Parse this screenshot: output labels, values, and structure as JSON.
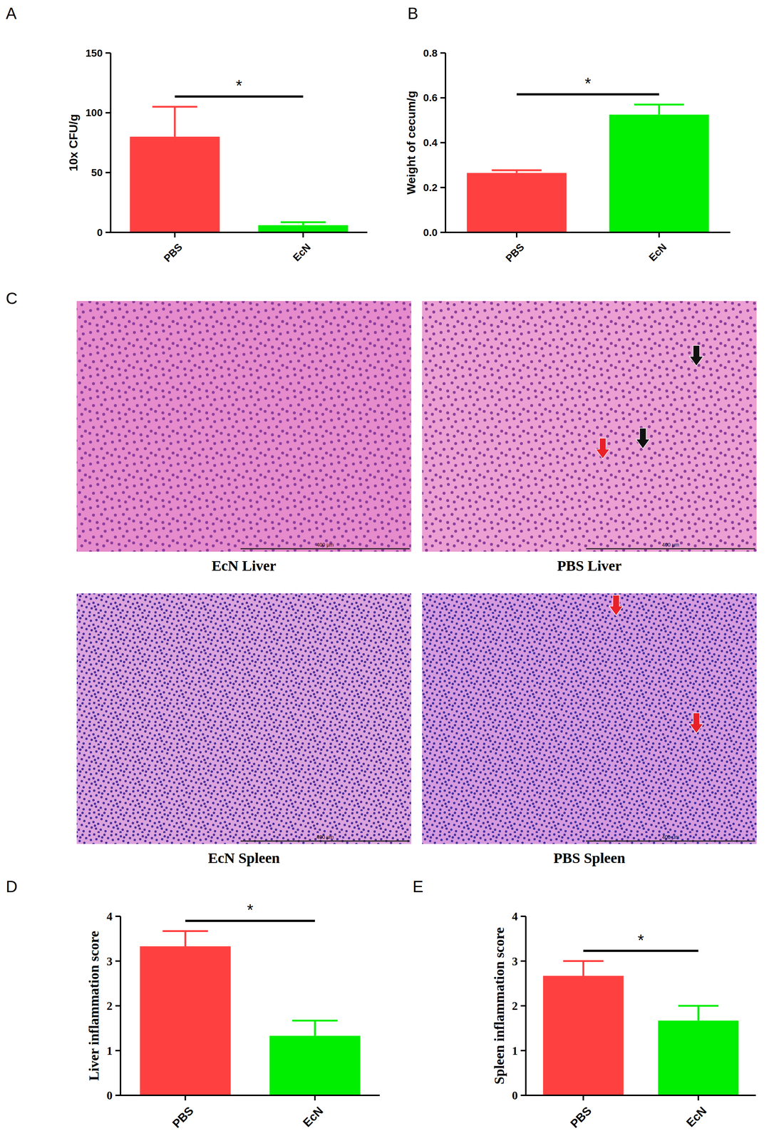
{
  "chart_data": [
    {
      "panel": "A",
      "type": "bar",
      "categories": [
        "PBS",
        "EcN"
      ],
      "values": [
        80,
        6
      ],
      "errors": [
        25,
        2.5
      ],
      "colors": [
        "#ff4040",
        "#00ee00"
      ],
      "y_label": "10x CFU/g",
      "ylim": [
        0,
        150
      ],
      "yticks": [
        0,
        50,
        100,
        150
      ],
      "annotation": "*"
    },
    {
      "panel": "B",
      "type": "bar",
      "categories": [
        "PBS",
        "EcN"
      ],
      "values": [
        0.265,
        0.525
      ],
      "errors": [
        0.012,
        0.045
      ],
      "colors": [
        "#ff4040",
        "#00ee00"
      ],
      "y_label": "Weight of cecum/g",
      "ylim": [
        0,
        0.8
      ],
      "yticks": [
        {
          "value": 0,
          "label": "0.0"
        },
        0.2,
        0.4,
        0.6,
        0.8
      ],
      "annotation": "*"
    },
    {
      "panel": "D",
      "type": "bar",
      "categories": [
        "PBS",
        "EcN"
      ],
      "values": [
        3.33,
        1.33
      ],
      "errors": [
        0.34,
        0.34
      ],
      "colors": [
        "#ff4040",
        "#00ee00"
      ],
      "y_label": "Liver inflammation score",
      "ylim": [
        0,
        4
      ],
      "yticks": [
        0,
        1,
        2,
        3,
        4
      ],
      "annotation": "*"
    },
    {
      "panel": "E",
      "type": "bar",
      "categories": [
        "PBS",
        "EcN"
      ],
      "values": [
        2.67,
        1.67
      ],
      "errors": [
        0.33,
        0.33
      ],
      "colors": [
        "#ff4040",
        "#00ee00"
      ],
      "y_label": "Spleen inflammation score",
      "ylim": [
        0,
        4
      ],
      "yticks": [
        0,
        1,
        2,
        3,
        4
      ],
      "annotation": "*"
    }
  ],
  "images": {
    "panel": "C",
    "items": [
      {
        "label": "EcN Liver",
        "scale_bar": "400 μm"
      },
      {
        "label": "PBS Liver",
        "scale_bar": "400 μm"
      },
      {
        "label": "EcN Spleen",
        "scale_bar": "400 μm"
      },
      {
        "label": "PBS Spleen",
        "scale_bar": "400 μm"
      }
    ]
  }
}
